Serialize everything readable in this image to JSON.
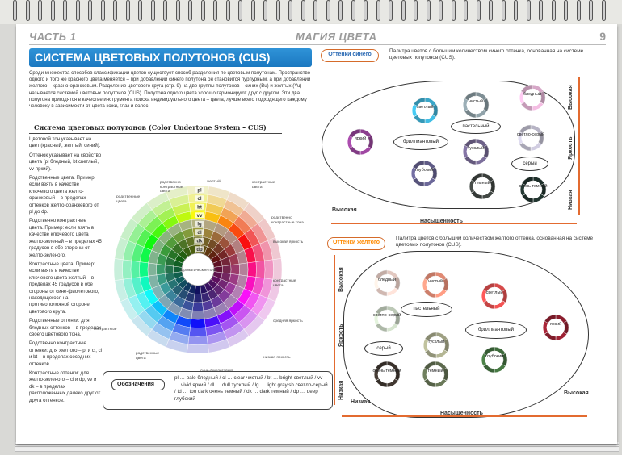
{
  "header": {
    "part": "ЧАСТЬ 1",
    "title": "МАГИЯ ЦВЕТА",
    "page_number": "9"
  },
  "title": "СИСТЕМА ЦВЕТОВЫХ ПОЛУТОНОВ (CUS)",
  "intro": "Среди множества способов классификации цветов существует способ разделения по цветовым полутонам. Пространство одного и того же красного цвета меняется – при добавлении синего полутона он становится пурпурным, а при добавлении желтого – красно-оранжевым. Разделение цветового круга (стр. 9) на две группы полутонов – синих (Bu) и желтых (Yu) – называется системой цветовых полутонов (CUS). Полутона одного цвета хорошо гармонируют друг с другом. Эти два полутона пригодятся в качестве инструмента поиска индивидуального цвета – цвета, лучше всего подходящего каждому человеку в зависимости от цвета кожи, глаз и волос.",
  "subtitle": "Система цветовых полутонов (Color Undertone System – CUS)",
  "left_paragraphs": [
    "Цветовой тон указывает на цвет (красный, желтый, синий).",
    "Оттенок указывает на свойство цвета (pl бледный, bt светлый, vv яркий).",
    "Родственные цвета. Пример: если взять в качестве ключевого цвета желто-оранжевый – в пределах оттенков желто-оранжевого от pl до dp.",
    "Родственно контрастные цвета. Пример: если взять в качестве ключевого цвета желто-зеленый – в пределах 45 градусов в обе стороны от желто-зеленого.",
    "Контрастные цвета. Пример: если взять в качестве ключевого цвета желтый – в пределах 45 градусов в обе стороны от сине-фиолетового, находящегося на противоположной стороне цветового круга.",
    "Родственные оттенки: для бледных оттенков – в пределах своего цветового тона.",
    "Родственно контрастные оттенки: для желтого – pl и cl, cl и bt – в пределах соседних оттенков.",
    "Контрастные оттенки: для желто-зеленого – cl и dp, vv и dk – в пределах расположенных далеко друг от друга оттенков."
  ],
  "wheel": {
    "tone_codes": [
      "pl",
      "cl",
      "bt",
      "vv",
      "lg",
      "dl",
      "dk",
      "dp"
    ],
    "center_label": "ахроматические тона",
    "labels": {
      "related": "родственные цвета",
      "related_contrast_top": "родственно контрастные цвета",
      "contrast_top": "контрастные цвета",
      "yellow": "желтый",
      "yellow_green": "родственно контрастные тона",
      "high_sat": "высокая яркость",
      "contrast_right": "контрастные цвета",
      "medium": "средняя яркость",
      "low": "низкая яркость",
      "blue_violet": "сине-фиолетовый",
      "related_bottom": "родственные цвета",
      "red": "красный",
      "contrast_left": "контрастные",
      "left_side": "родственные цвета"
    }
  },
  "legend": {
    "label": "Обозначения",
    "text": "pl … pale бледный / cl … clear чистый / bt … bright светлый / vv … vivid яркий / dl … dull тусклый / lg … light grayish светло-серый / td … too dark очень темный / dk … dark темный / dp … deep глубокий"
  },
  "blue_panel": {
    "pill": "Оттенки синего",
    "description": "Палитра цветов с большим количеством синего оттенка, основанная на системе цветовых полутонов (CUS).",
    "swatches": [
      {
        "label": "яркий",
        "color": "#8c3f8f"
      },
      {
        "label": "светлый",
        "color": "#3aa6c8"
      },
      {
        "label": "чистый",
        "color": "#7f8f95"
      },
      {
        "label": "бледный",
        "color": "#d6a7c7"
      },
      {
        "label": "светло-серый",
        "color": "#b7b4c5"
      },
      {
        "label": "тусклый",
        "color": "#6d6188"
      },
      {
        "label": "глубокий",
        "color": "#5f5b86"
      },
      {
        "label": "темный",
        "color": "#3a3f3c"
      },
      {
        "label": "очень темный",
        "color": "#1e2f2a"
      }
    ],
    "tags": [
      "пастельный",
      "бриллиантовый",
      "серый"
    ],
    "axis_x": "Насыщенность",
    "axis_y": "Яркость",
    "low": "Низкая",
    "high_x": "Высокая",
    "high_y": "Высокая"
  },
  "yellow_panel": {
    "pill": "Оттенки желтого",
    "description": "Палитра цветов с большим количеством желтого оттенка, основанная на системе цветовых полутонов (CUS).",
    "swatches": [
      {
        "label": "бледный",
        "color": "#e2c8c0"
      },
      {
        "label": "чистый",
        "color": "#e08a74"
      },
      {
        "label": "светлый",
        "color": "#d64a4a"
      },
      {
        "label": "светло-серый",
        "color": "#bcc8b6"
      },
      {
        "label": "яркий",
        "color": "#8b1e2e"
      },
      {
        "label": "тусклый",
        "color": "#9ea082"
      },
      {
        "label": "глубокий",
        "color": "#3f6b3c"
      },
      {
        "label": "очень темный",
        "color": "#3a322c"
      },
      {
        "label": "темный",
        "color": "#5d6a4e"
      }
    ],
    "tags": [
      "пастельный",
      "бриллиантовый",
      "серый"
    ],
    "axis_x": "Насыщенность",
    "axis_y": "Яркость",
    "low_x": "Низкая",
    "high_x": "Высокая",
    "high_y": "Высокая",
    "low_y": "Низкая"
  }
}
